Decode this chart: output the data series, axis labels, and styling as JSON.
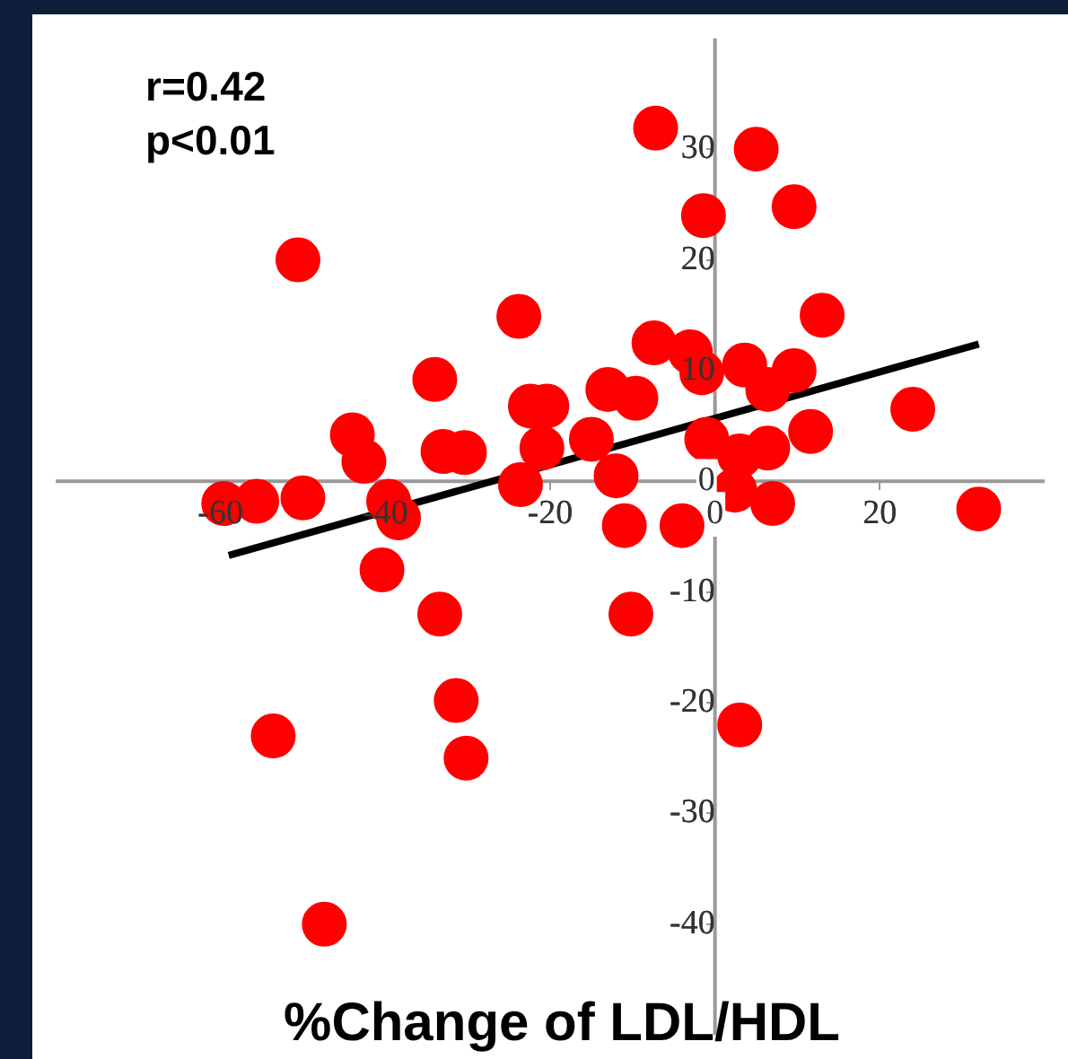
{
  "chart_data": {
    "type": "scatter",
    "xlabel": "%Change of LDL/HDL",
    "annotations": [
      "r=0.42",
      "p<0.01"
    ],
    "xlim": [
      -80,
      40
    ],
    "ylim": [
      -50,
      40
    ],
    "xticks": [
      -60,
      -40,
      -20,
      0,
      20
    ],
    "yticks": [
      -40,
      -30,
      -20,
      -10,
      0,
      10,
      20,
      30
    ],
    "grid": false,
    "legend": false,
    "marker": "circle",
    "series": [
      {
        "color": "#ff0000",
        "x": [
          -50.6,
          -23.8,
          -34,
          -44,
          -42.6,
          -33,
          -30.4,
          -22.4,
          -23.6,
          -59.6,
          -55.6,
          -50,
          -39.6,
          -38.4,
          -40.4,
          -33.4,
          -10.2,
          -31.4,
          -30.2,
          -53.6,
          -47.4,
          3,
          32,
          -11,
          -4,
          7,
          -7.2,
          5,
          -1.4,
          9.6,
          13,
          24,
          11.6,
          -7.4,
          -3,
          9.6,
          -1.6,
          3.6,
          6.4,
          -1,
          3,
          6.4,
          2.4,
          -13,
          -9.6,
          -15,
          -12,
          -20.4,
          -21
        ],
        "values": [
          20,
          14.9,
          9.2,
          4.2,
          1.8,
          2.7,
          2.6,
          6.8,
          -0.3,
          -2,
          -1.8,
          -1.5,
          -1.8,
          -3.3,
          -8,
          -12,
          -12,
          -19.8,
          -25,
          -23,
          -40,
          -22,
          -2.5,
          -4,
          -4,
          -2,
          31.9,
          30,
          24,
          24.8,
          15,
          6.5,
          4.5,
          12.5,
          11.7,
          10,
          9.8,
          10.5,
          8.3,
          3.8,
          2.3,
          3,
          -0.8,
          8.3,
          7.5,
          3.8,
          0.5,
          6.8,
          3
        ]
      },
      {
        "type": "line",
        "color": "#000000",
        "x": [
          -59,
          32
        ],
        "values": [
          -6.7,
          12.4
        ],
        "marker": "none"
      }
    ]
  }
}
